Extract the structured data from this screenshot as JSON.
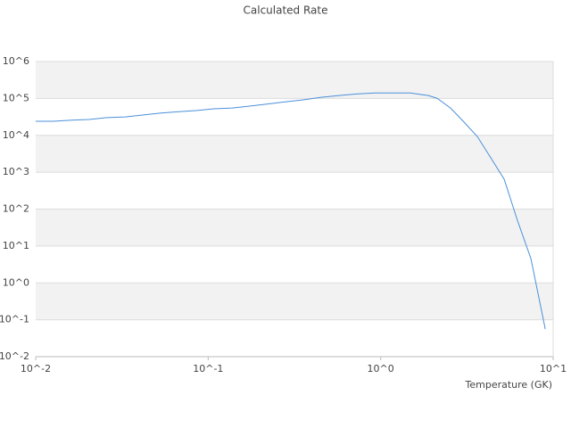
{
  "chart_data": {
    "type": "line",
    "title": "Calculated Rate",
    "x_label": "Temperature (GK)",
    "x": [
      0.01,
      0.0127,
      0.0162,
      0.0204,
      0.0259,
      0.0331,
      0.0417,
      0.0525,
      0.0676,
      0.0851,
      0.108,
      0.138,
      0.174,
      0.221,
      0.282,
      0.355,
      0.452,
      0.575,
      0.728,
      0.925,
      1.17,
      1.48,
      1.89,
      2.13,
      2.54,
      3.04,
      3.63,
      4.35,
      5.2,
      6.22,
      7.43,
      9.0
    ],
    "series": [
      {
        "color": "#4a90d9",
        "values": [
          24000,
          24000,
          25700,
          26900,
          30200,
          31600,
          35500,
          39800,
          43700,
          46800,
          52500,
          55000,
          61700,
          70800,
          81300,
          91200,
          107000,
          120000,
          132000,
          141000,
          141000,
          141000,
          120000,
          100000,
          55000,
          22900,
          9330,
          2450,
          646,
          47.9,
          4.57,
          0.0562
        ]
      }
    ],
    "xlog": true,
    "ylog": true,
    "xlim": [
      0.01,
      10
    ],
    "ylim": [
      0.01,
      1000000
    ],
    "xticks": [
      {
        "value": 0.01,
        "label": "10^-2"
      },
      {
        "value": 0.1,
        "label": "10^-1"
      },
      {
        "value": 1,
        "label": "10^0"
      },
      {
        "value": 10,
        "label": "10^1"
      }
    ],
    "yticks": [
      {
        "value": 0.01,
        "label": "10^-2"
      },
      {
        "value": 0.1,
        "label": "10^-1"
      },
      {
        "value": 1,
        "label": "10^0"
      },
      {
        "value": 10,
        "label": "10^1"
      },
      {
        "value": 100,
        "label": "10^2"
      },
      {
        "value": 1000,
        "label": "10^3"
      },
      {
        "value": 10000,
        "label": "10^4"
      },
      {
        "value": 100000,
        "label": "10^5"
      },
      {
        "value": 1000000,
        "label": "10^6"
      }
    ],
    "grid": true
  }
}
